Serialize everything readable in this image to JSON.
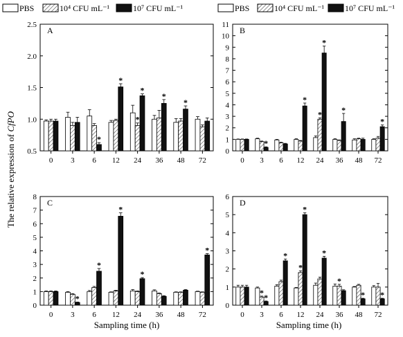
{
  "figure": {
    "ylabel_prefix": "The relative expression of ",
    "ylabel_gene": "CfPO",
    "xlabel": "Sampling time (h)"
  },
  "legend": [
    {
      "label": "PBS",
      "pattern": "white"
    },
    {
      "label": "10⁴ CFU mL⁻¹",
      "pattern": "hatched"
    },
    {
      "label": "10⁷ CFU mL⁻¹",
      "pattern": "black"
    }
  ],
  "colors": {
    "black_series": "#111111",
    "white_series": "#ffffff",
    "hatch": "#444444"
  },
  "chart_data": [
    {
      "type": "bar",
      "panel": "A",
      "categories": [
        "0",
        "3",
        "6",
        "12",
        "24",
        "36",
        "48",
        "72"
      ],
      "ylim": [
        0.5,
        2.5
      ],
      "yticks": [
        "0.5",
        "1.0",
        "1.5",
        "2.0",
        "2.5"
      ],
      "series": [
        {
          "name": "PBS",
          "values": [
            0.97,
            1.03,
            1.05,
            0.95,
            1.1,
            1.0,
            0.95,
            1.0
          ],
          "errors": [
            0.02,
            0.08,
            0.1,
            0.03,
            0.12,
            0.06,
            0.06,
            0.04
          ]
        },
        {
          "name": "10⁴ CFU mL⁻¹",
          "values": [
            0.97,
            0.9,
            0.9,
            0.98,
            0.9,
            1.02,
            0.97,
            0.88
          ],
          "errors": [
            0.03,
            0.05,
            0.03,
            0.02,
            0.04,
            0.12,
            0.04,
            0.03
          ]
        },
        {
          "name": "10⁷ CFU mL⁻¹",
          "values": [
            0.97,
            0.95,
            0.6,
            1.51,
            1.37,
            1.25,
            1.16,
            0.97
          ],
          "errors": [
            0.03,
            0.08,
            0.03,
            0.05,
            0.03,
            0.06,
            0.05,
            0.05
          ]
        }
      ],
      "significance": [
        [],
        [],
        [
          2
        ],
        [
          2
        ],
        [
          1,
          2
        ],
        [
          2
        ],
        [
          2
        ],
        []
      ]
    },
    {
      "type": "bar",
      "panel": "B",
      "categories": [
        "0",
        "3",
        "6",
        "12",
        "24",
        "36",
        "48",
        "72"
      ],
      "ylim": [
        0,
        11
      ],
      "yticks": [
        "0",
        "1",
        "2",
        "3",
        "4",
        "5",
        "6",
        "7",
        "8",
        "9",
        "10",
        "11"
      ],
      "series": [
        {
          "name": "PBS",
          "values": [
            1.0,
            1.05,
            0.95,
            1.0,
            1.15,
            1.0,
            0.95,
            1.0
          ],
          "errors": [
            0.03,
            0.05,
            0.05,
            0.05,
            0.15,
            0.05,
            0.1,
            0.05
          ]
        },
        {
          "name": "10⁴ CFU mL⁻¹",
          "values": [
            1.0,
            0.8,
            0.7,
            0.85,
            2.75,
            0.9,
            1.05,
            1.1
          ],
          "errors": [
            0.03,
            0.05,
            0.05,
            0.05,
            0.12,
            0.05,
            0.05,
            0.15
          ]
        },
        {
          "name": "10⁷ CFU mL⁻¹",
          "values": [
            1.0,
            0.3,
            0.6,
            3.9,
            8.5,
            2.55,
            1.0,
            2.1
          ],
          "errors": [
            0.03,
            0.05,
            0.05,
            0.25,
            0.6,
            0.7,
            0.1,
            0.15
          ]
        }
      ],
      "significance": [
        [],
        [
          2
        ],
        [],
        [
          2
        ],
        [
          1,
          2
        ],
        [
          2
        ],
        [],
        [
          2
        ]
      ]
    },
    {
      "type": "bar",
      "panel": "C",
      "categories": [
        "0",
        "3",
        "6",
        "12",
        "24",
        "36",
        "48",
        "72"
      ],
      "ylim": [
        0,
        8
      ],
      "yticks": [
        "0",
        "1",
        "2",
        "3",
        "4",
        "5",
        "6",
        "7",
        "8"
      ],
      "series": [
        {
          "name": "PBS",
          "values": [
            1.0,
            0.95,
            1.0,
            0.95,
            1.05,
            1.05,
            0.95,
            1.0
          ],
          "errors": [
            0.05,
            0.05,
            0.08,
            0.03,
            0.1,
            0.08,
            0.03,
            0.03
          ]
        },
        {
          "name": "10⁴ CFU mL⁻¹",
          "values": [
            1.0,
            0.8,
            1.3,
            1.05,
            1.0,
            0.85,
            0.95,
            0.95
          ],
          "errors": [
            0.05,
            0.05,
            0.08,
            0.05,
            0.05,
            0.05,
            0.03,
            0.03
          ]
        },
        {
          "name": "10⁷ CFU mL⁻¹",
          "values": [
            1.0,
            0.2,
            2.5,
            6.55,
            1.95,
            0.65,
            1.1,
            3.7
          ],
          "errors": [
            0.05,
            0.03,
            0.2,
            0.25,
            0.08,
            0.05,
            0.05,
            0.1
          ]
        }
      ],
      "significance": [
        [],
        [
          2
        ],
        [
          2
        ],
        [
          2
        ],
        [
          2
        ],
        [],
        [],
        [
          2
        ]
      ]
    },
    {
      "type": "bar",
      "panel": "D",
      "categories": [
        "0",
        "3",
        "6",
        "12",
        "24",
        "36",
        "48",
        "72"
      ],
      "ylim": [
        0,
        6
      ],
      "yticks": [
        "0",
        "1",
        "2",
        "3",
        "4",
        "5",
        "6"
      ],
      "series": [
        {
          "name": "PBS",
          "values": [
            1.0,
            0.95,
            1.05,
            0.95,
            1.1,
            1.05,
            1.0,
            1.0
          ],
          "errors": [
            0.1,
            0.05,
            0.08,
            0.03,
            0.12,
            0.12,
            0.03,
            0.08
          ]
        },
        {
          "name": "10⁴ CFU mL⁻¹",
          "values": [
            1.0,
            0.45,
            1.3,
            1.8,
            1.45,
            1.05,
            1.1,
            1.0
          ],
          "errors": [
            0.1,
            0.05,
            0.08,
            0.1,
            0.1,
            0.1,
            0.05,
            0.2
          ]
        },
        {
          "name": "10⁷ CFU mL⁻¹",
          "values": [
            1.0,
            0.2,
            2.45,
            5.0,
            2.6,
            0.8,
            0.35,
            0.35
          ],
          "errors": [
            0.1,
            0.03,
            0.1,
            0.1,
            0.1,
            0.05,
            0.03,
            0.03
          ]
        }
      ],
      "significance": [
        [],
        [
          1,
          2
        ],
        [
          2
        ],
        [
          1,
          2
        ],
        [
          2
        ],
        [
          1
        ],
        [
          2
        ],
        [
          2
        ]
      ]
    }
  ]
}
